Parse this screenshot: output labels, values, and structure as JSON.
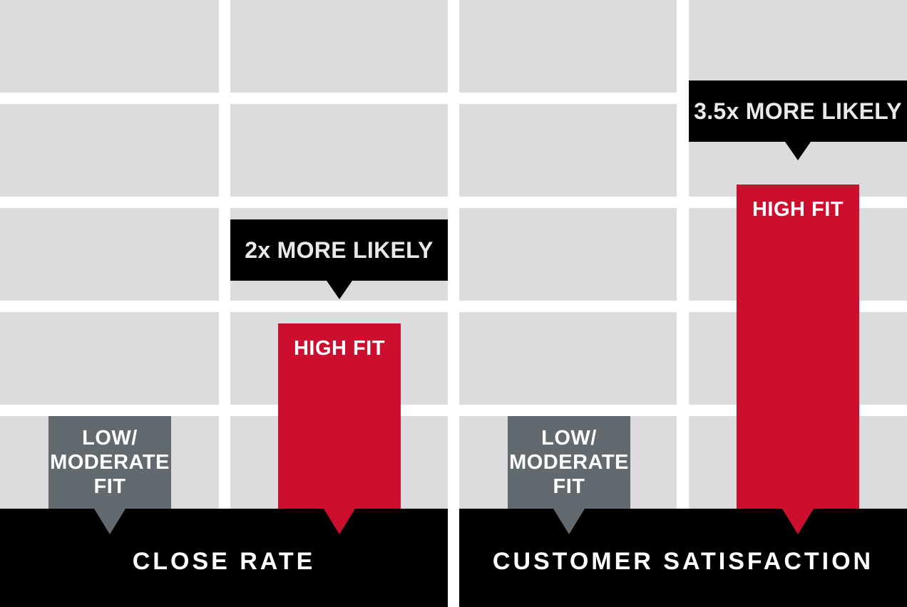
{
  "colors": {
    "background": "#ffffff",
    "grid_cell": "#dcdcde",
    "high_fit": "#cc0f2f",
    "low_fit": "#636a6f",
    "callout": "#000000"
  },
  "chart_data": [
    {
      "type": "bar",
      "title": "CLOSE RATE",
      "categories": [
        "LOW/\nMODERATE\nFIT",
        "HIGH FIT"
      ],
      "values": [
        1,
        2
      ],
      "ylim": [
        0,
        5
      ],
      "grid": true,
      "callout": "2x MORE LIKELY",
      "callout_target": "HIGH FIT"
    },
    {
      "type": "bar",
      "title": "CUSTOMER SATISFACTION",
      "categories": [
        "LOW/\nMODERATE\nFIT",
        "HIGH FIT"
      ],
      "values": [
        1,
        3.5
      ],
      "ylim": [
        0,
        5
      ],
      "grid": true,
      "callout": "3.5x MORE LIKELY",
      "callout_target": "HIGH FIT"
    }
  ]
}
